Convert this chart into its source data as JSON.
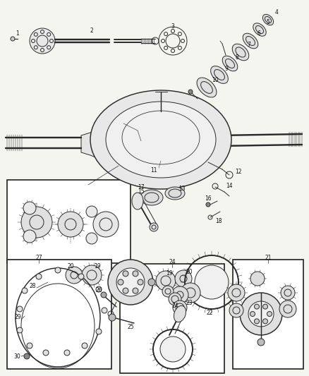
{
  "bg_color": "#f5f5f0",
  "fig_width": 4.38,
  "fig_height": 5.33,
  "dpi": 100,
  "lc": "#2a2a2a",
  "lw": 0.7,
  "fs": 5.5
}
